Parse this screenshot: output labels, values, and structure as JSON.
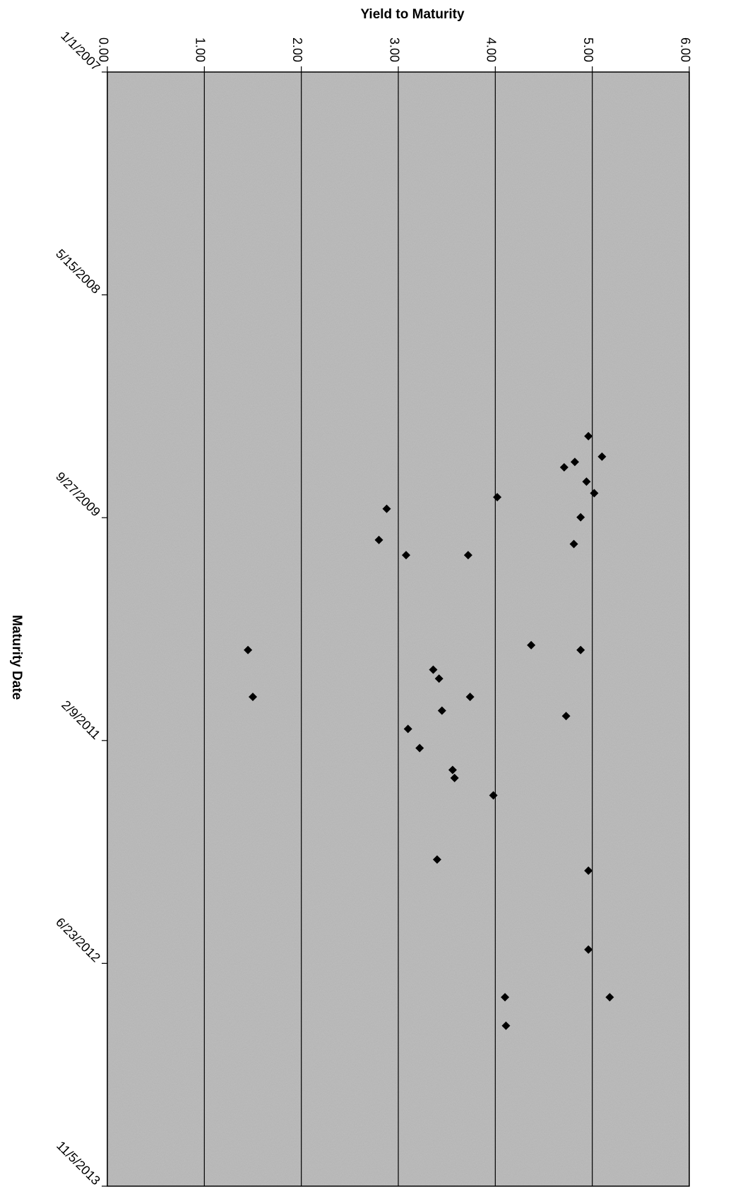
{
  "chart_data": {
    "type": "scatter",
    "title": "",
    "xlabel": "Maturity Date",
    "ylabel": "Yield to Maturity",
    "x_axis": {
      "kind": "date",
      "range": [
        "2007-01-01",
        "2013-11-05"
      ],
      "tick_values": [
        "2007-01-01",
        "2008-05-15",
        "2009-09-27",
        "2011-02-09",
        "2012-06-23",
        "2013-11-05"
      ],
      "tick_labels": [
        "1/1/2007",
        "5/15/2008",
        "9/27/2009",
        "2/9/2011",
        "6/23/2012",
        "11/5/2013"
      ]
    },
    "y_axis": {
      "range": [
        0,
        6
      ],
      "tick_values": [
        0,
        1,
        2,
        3,
        4,
        5,
        6
      ],
      "tick_labels": [
        "0.00",
        "1.00",
        "2.00",
        "3.00",
        "4.00",
        "5.00",
        "6.00"
      ]
    },
    "grid": true,
    "legend": "none",
    "colors": {
      "plot_background": "#b8b8b8",
      "gridline": "#000000",
      "marker": "#000000"
    },
    "marker": "diamond",
    "series": [
      {
        "points": [
          {
            "x": "2009-03-28",
            "y": 4.96
          },
          {
            "x": "2009-05-13",
            "y": 5.1
          },
          {
            "x": "2009-05-25",
            "y": 4.82
          },
          {
            "x": "2009-06-06",
            "y": 4.71
          },
          {
            "x": "2009-07-08",
            "y": 4.94
          },
          {
            "x": "2009-08-03",
            "y": 5.02
          },
          {
            "x": "2009-08-12",
            "y": 4.02
          },
          {
            "x": "2009-09-07",
            "y": 2.88
          },
          {
            "x": "2009-09-26",
            "y": 4.88
          },
          {
            "x": "2009-11-16",
            "y": 2.8
          },
          {
            "x": "2009-11-25",
            "y": 4.81
          },
          {
            "x": "2009-12-20",
            "y": 3.08
          },
          {
            "x": "2009-12-20",
            "y": 3.72
          },
          {
            "x": "2010-07-10",
            "y": 4.37
          },
          {
            "x": "2010-07-21",
            "y": 1.45
          },
          {
            "x": "2010-07-21",
            "y": 4.88
          },
          {
            "x": "2010-09-03",
            "y": 3.36
          },
          {
            "x": "2010-09-23",
            "y": 3.42
          },
          {
            "x": "2010-11-03",
            "y": 1.5
          },
          {
            "x": "2010-11-03",
            "y": 3.74
          },
          {
            "x": "2010-12-04",
            "y": 3.45
          },
          {
            "x": "2010-12-16",
            "y": 4.73
          },
          {
            "x": "2011-01-14",
            "y": 3.1
          },
          {
            "x": "2011-02-26",
            "y": 3.22
          },
          {
            "x": "2011-04-16",
            "y": 3.56
          },
          {
            "x": "2011-05-04",
            "y": 3.58
          },
          {
            "x": "2011-06-12",
            "y": 3.98
          },
          {
            "x": "2011-11-03",
            "y": 3.4
          },
          {
            "x": "2011-11-28",
            "y": 4.96
          },
          {
            "x": "2012-05-23",
            "y": 4.96
          },
          {
            "x": "2012-09-07",
            "y": 4.1
          },
          {
            "x": "2012-09-07",
            "y": 5.18
          },
          {
            "x": "2012-11-10",
            "y": 4.11
          }
        ]
      }
    ]
  }
}
